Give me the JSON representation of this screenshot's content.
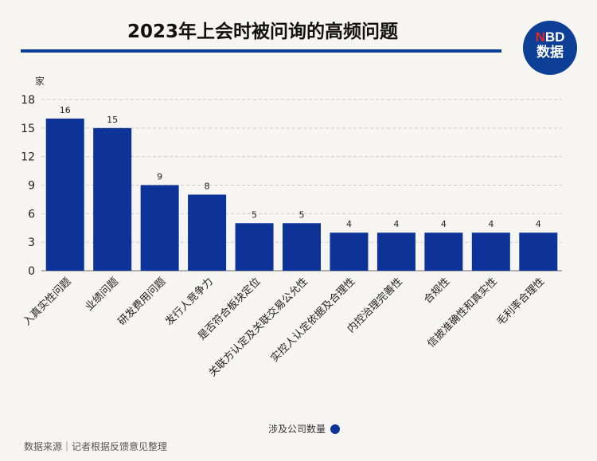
{
  "header": {
    "title": "2023年上会时被问询的高频问题",
    "logo_top_red": "N",
    "logo_top": "BD",
    "logo_bottom": "数据"
  },
  "chart_data": {
    "type": "bar",
    "title": "2023年上会时被问询的高频问题",
    "ylabel": "家",
    "ylim": [
      0,
      18
    ],
    "yticks": [
      0,
      3,
      6,
      9,
      12,
      15,
      18
    ],
    "grid": true,
    "legend_position": "bottom-center",
    "categories": [
      "入真实性问题",
      "业绩问题",
      "研发费用问题",
      "发行人竞争力",
      "是否符合板块定位",
      "关联方认定及关联交易公允性",
      "实控人认定依据及合理性",
      "内控治理完善性",
      "合规性",
      "信披准确性和真实性",
      "毛利率合理性"
    ],
    "series": [
      {
        "name": "涉及公司数量",
        "color": "#0d3399",
        "values": [
          16,
          15,
          9,
          8,
          5,
          5,
          4,
          4,
          4,
          4,
          4
        ]
      }
    ]
  },
  "legend": {
    "label": "涉及公司数量"
  },
  "footer": {
    "source": "数据来源｜记者根据反馈意见整理"
  }
}
